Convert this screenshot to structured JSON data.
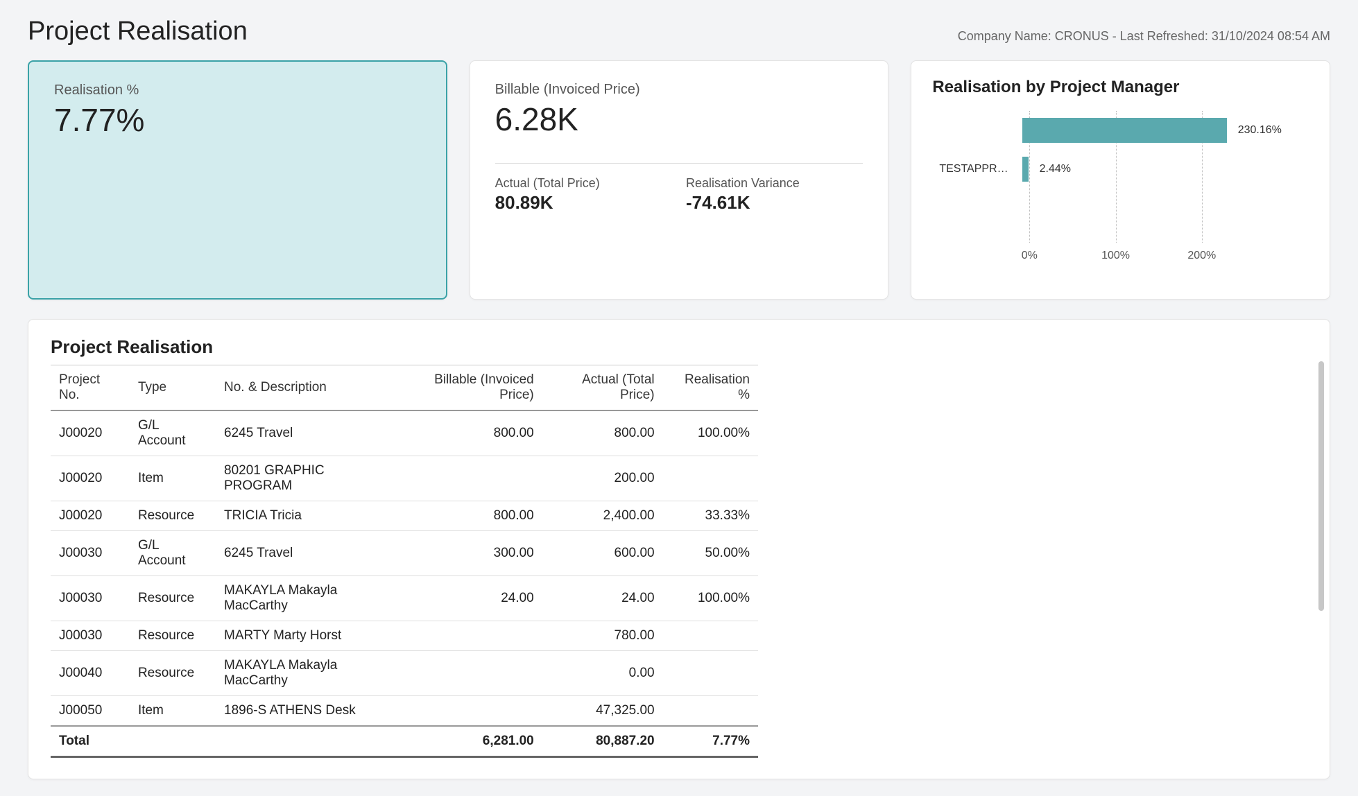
{
  "header": {
    "title": "Project Realisation",
    "meta": "Company Name: CRONUS - Last Refreshed: 31/10/2024 08:54 AM"
  },
  "kpi_realisation": {
    "label": "Realisation %",
    "value": "7.77%",
    "selected": true,
    "background_color": "#d3ecee",
    "border_color": "#3aa2a7"
  },
  "kpi_billable": {
    "label": "Billable (Invoiced Price)",
    "value": "6.28K",
    "sub": [
      {
        "label": "Actual (Total Price)",
        "value": "80.89K"
      },
      {
        "label": "Realisation Variance",
        "value": "-74.61K"
      }
    ]
  },
  "pm_chart": {
    "type": "bar-horizontal",
    "title": "Realisation by Project Manager",
    "bar_color": "#5aa9ae",
    "grid_color": "#bbbbbb",
    "label_fontsize": 16,
    "xmax": 260,
    "ticks": [
      {
        "pos_pct": 0,
        "label": "0%"
      },
      {
        "pos_pct": 38.5,
        "label": "100%"
      },
      {
        "pos_pct": 77,
        "label": "200%"
      }
    ],
    "bars": [
      {
        "category": "",
        "value_label": "230.16%",
        "width_pct": 88.5
      },
      {
        "category": "TESTAPPROV...",
        "value_label": "2.44%",
        "width_pct": 2.5
      }
    ]
  },
  "table": {
    "title": "Project Realisation",
    "columns": [
      {
        "key": "project_no",
        "label": "Project No.",
        "align": "left"
      },
      {
        "key": "type",
        "label": "Type",
        "align": "left"
      },
      {
        "key": "desc",
        "label": "No. & Description",
        "align": "left"
      },
      {
        "key": "billable",
        "label": "Billable (Invoiced Price)",
        "align": "right"
      },
      {
        "key": "actual",
        "label": "Actual (Total Price)",
        "align": "right"
      },
      {
        "key": "realisation",
        "label": "Realisation %",
        "align": "right"
      }
    ],
    "rows": [
      [
        "J00020",
        "G/L Account",
        "6245 Travel",
        "800.00",
        "800.00",
        "100.00%"
      ],
      [
        "J00020",
        "Item",
        "80201 GRAPHIC PROGRAM",
        "",
        "200.00",
        ""
      ],
      [
        "J00020",
        "Resource",
        "TRICIA Tricia",
        "800.00",
        "2,400.00",
        "33.33%"
      ],
      [
        "J00030",
        "G/L Account",
        "6245 Travel",
        "300.00",
        "600.00",
        "50.00%"
      ],
      [
        "J00030",
        "Resource",
        "MAKAYLA Makayla MacCarthy",
        "24.00",
        "24.00",
        "100.00%"
      ],
      [
        "J00030",
        "Resource",
        "MARTY Marty Horst",
        "",
        "780.00",
        ""
      ],
      [
        "J00040",
        "Resource",
        "MAKAYLA Makayla MacCarthy",
        "",
        "0.00",
        ""
      ],
      [
        "J00050",
        "Item",
        "1896-S ATHENS Desk",
        "",
        "47,325.00",
        ""
      ]
    ],
    "total": {
      "label": "Total",
      "billable": "6,281.00",
      "actual": "80,887.20",
      "realisation": "7.77%"
    }
  }
}
